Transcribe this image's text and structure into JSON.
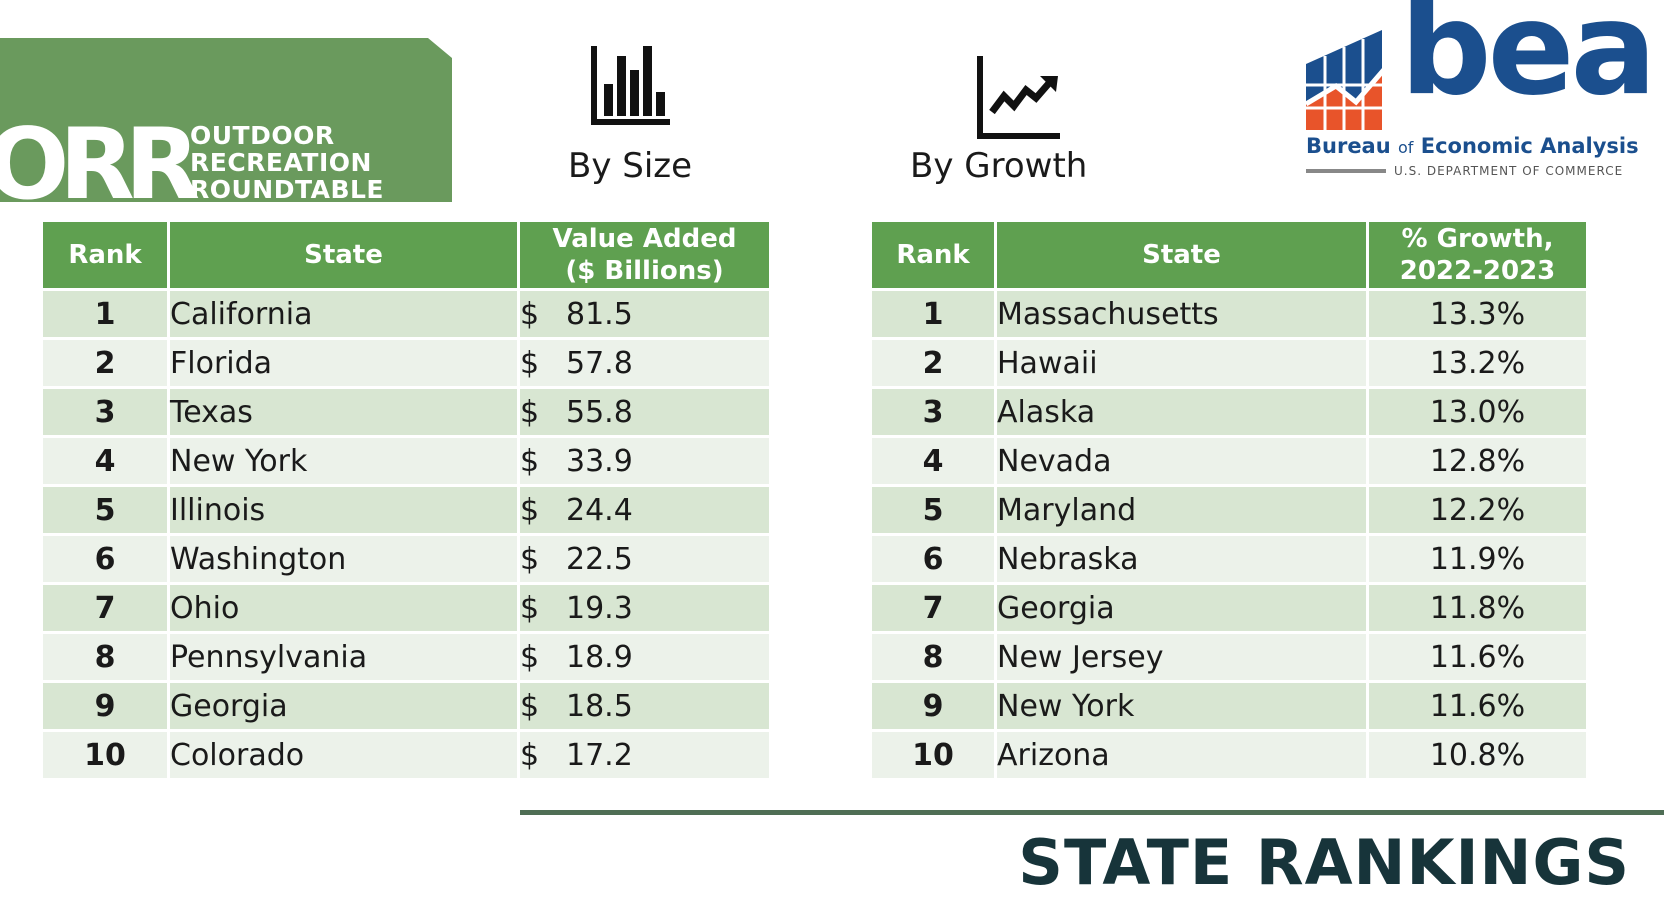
{
  "header": {
    "orr_logo": {
      "mark": "ORR",
      "lines": [
        "OUTDOOR",
        "RECREATION",
        "ROUNDTABLE"
      ]
    },
    "size_icon": "bar-chart-icon",
    "size_caption": "By Size",
    "growth_icon": "line-chart-icon",
    "growth_caption": "By Growth",
    "bea_logo": {
      "word": "bea",
      "full_name_part1": "Bureau",
      "full_name_of": "of",
      "full_name_part2": "Economic Analysis",
      "department": "U.S. DEPARTMENT OF COMMERCE"
    }
  },
  "size_table": {
    "headers": {
      "rank": "Rank",
      "state": "State",
      "value_line1": "Value Added",
      "value_line2": "($ Billions)"
    },
    "rows": [
      {
        "rank": "1",
        "state": "California",
        "currency": "$",
        "value": "81.5"
      },
      {
        "rank": "2",
        "state": "Florida",
        "currency": "$",
        "value": "57.8"
      },
      {
        "rank": "3",
        "state": "Texas",
        "currency": "$",
        "value": "55.8"
      },
      {
        "rank": "4",
        "state": "New York",
        "currency": "$",
        "value": "33.9"
      },
      {
        "rank": "5",
        "state": "Illinois",
        "currency": "$",
        "value": "24.4"
      },
      {
        "rank": "6",
        "state": "Washington",
        "currency": "$",
        "value": "22.5"
      },
      {
        "rank": "7",
        "state": "Ohio",
        "currency": "$",
        "value": "19.3"
      },
      {
        "rank": "8",
        "state": "Pennsylvania",
        "currency": "$",
        "value": "18.9"
      },
      {
        "rank": "9",
        "state": "Georgia",
        "currency": "$",
        "value": "18.5"
      },
      {
        "rank": "10",
        "state": "Colorado",
        "currency": "$",
        "value": "17.2"
      }
    ]
  },
  "growth_table": {
    "headers": {
      "rank": "Rank",
      "state": "State",
      "growth_line1": "% Growth,",
      "growth_line2": "2022-2023"
    },
    "rows": [
      {
        "rank": "1",
        "state": "Massachusetts",
        "growth": "13.3%"
      },
      {
        "rank": "2",
        "state": "Hawaii",
        "growth": "13.2%"
      },
      {
        "rank": "3",
        "state": "Alaska",
        "growth": "13.0%"
      },
      {
        "rank": "4",
        "state": "Nevada",
        "growth": "12.8%"
      },
      {
        "rank": "5",
        "state": "Maryland",
        "growth": "12.2%"
      },
      {
        "rank": "6",
        "state": "Nebraska",
        "growth": "11.9%"
      },
      {
        "rank": "7",
        "state": "Georgia",
        "growth": "11.8%"
      },
      {
        "rank": "8",
        "state": "New Jersey",
        "growth": "11.6%"
      },
      {
        "rank": "9",
        "state": "New York",
        "growth": "11.6%"
      },
      {
        "rank": "10",
        "state": "Arizona",
        "growth": "10.8%"
      }
    ]
  },
  "footer": {
    "title": "STATE RANKINGS"
  },
  "colors": {
    "header_green": "#5fa050",
    "banner_green": "#6a9a5d",
    "row_dark": "#d8e6d2",
    "row_light": "#ecf2ea",
    "bea_blue": "#1b4f8e",
    "bea_orange": "#e8542a",
    "title_dark": "#17343a"
  }
}
